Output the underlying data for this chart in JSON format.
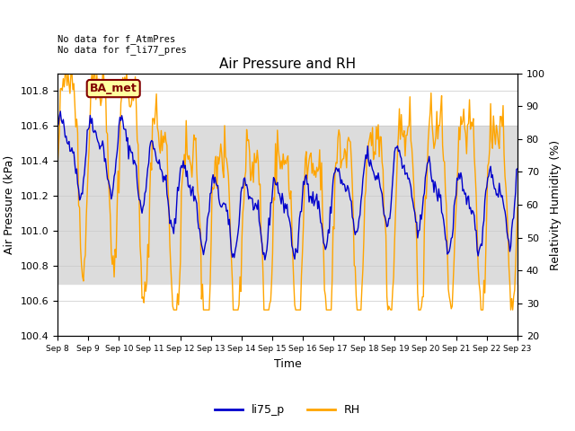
{
  "title": "Air Pressure and RH",
  "xlabel": "Time",
  "ylabel_left": "Air Pressure (kPa)",
  "ylabel_right": "Relativity Humidity (%)",
  "ylim_left": [
    100.4,
    101.9
  ],
  "ylim_right": [
    20,
    100
  ],
  "yticks_left": [
    100.4,
    100.6,
    100.8,
    101.0,
    101.2,
    101.4,
    101.6,
    101.8
  ],
  "yticks_right": [
    20,
    30,
    40,
    50,
    60,
    70,
    80,
    90,
    100
  ],
  "xticklabels": [
    "Sep 8",
    "Sep 9",
    "Sep 10",
    "Sep 11",
    "Sep 12",
    "Sep 13",
    "Sep 14",
    "Sep 15",
    "Sep 16",
    "Sep 17",
    "Sep 18",
    "Sep 19",
    "Sep 20",
    "Sep 21",
    "Sep 22",
    "Sep 23"
  ],
  "annotation_text": "No data for f_AtmPres\nNo data for f_li77_pres",
  "box_label": "BA_met",
  "box_facecolor": "#FFFFA0",
  "box_edgecolor": "#800000",
  "box_textcolor": "#800000",
  "line_blue_color": "#0000CC",
  "line_orange_color": "#FFA500",
  "legend_labels": [
    "li75_p",
    "RH"
  ],
  "shading_facecolor": "#DCDCDC",
  "shading_ylim": [
    100.7,
    101.6
  ],
  "n_points": 480,
  "seed": 42
}
